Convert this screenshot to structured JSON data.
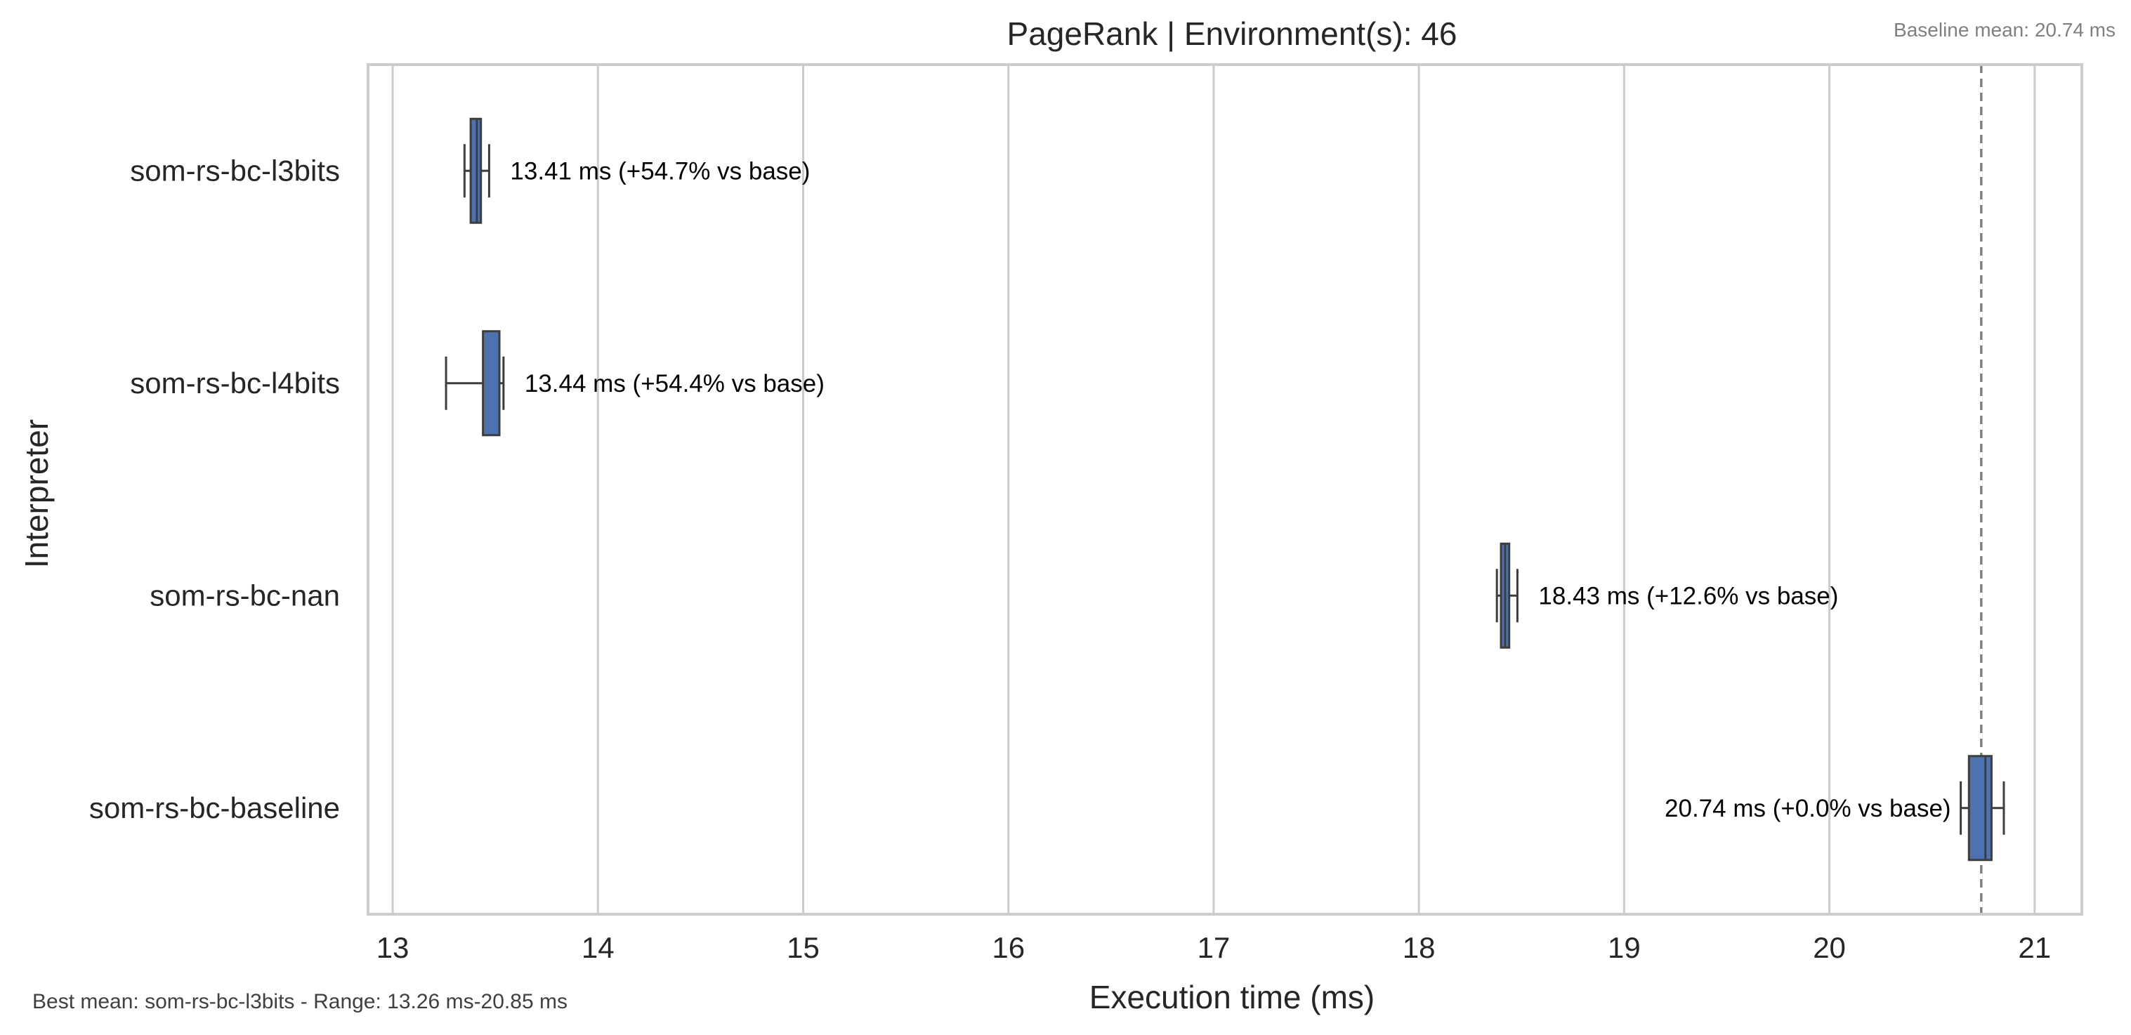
{
  "chart_data": {
    "type": "boxplot",
    "orientation": "horizontal",
    "title": "PageRank | Environment(s): 46",
    "xlabel": "Execution time (ms)",
    "ylabel": "Interpreter",
    "xlim": [
      12.88,
      21.23
    ],
    "xticks": [
      13,
      14,
      15,
      16,
      17,
      18,
      19,
      20,
      21
    ],
    "xtick_labels": [
      "13",
      "14",
      "15",
      "16",
      "17",
      "18",
      "19",
      "20",
      "21"
    ],
    "grid": "vertical",
    "box_color": "#4c72b0",
    "edge_color": "#3d3d3d",
    "baseline_line_color": "#808080",
    "baseline_mean": 20.74,
    "baseline_note": "Baseline mean: 20.74 ms",
    "footer_note": "Best mean: som-rs-bc-l3bits - Range: 13.26 ms-20.85 ms",
    "series": [
      {
        "name": "som-rs-bc-l3bits",
        "whisker_low": 13.35,
        "q1": 13.38,
        "median": 13.41,
        "q3": 13.43,
        "whisker_high": 13.47,
        "label": "13.41 ms  (+54.7% vs base)",
        "label_side": "right"
      },
      {
        "name": "som-rs-bc-l4bits",
        "whisker_low": 13.26,
        "q1": 13.44,
        "median": 13.52,
        "q3": 13.52,
        "whisker_high": 13.54,
        "label": "13.44 ms  (+54.4% vs base)",
        "label_side": "right"
      },
      {
        "name": "som-rs-bc-nan",
        "whisker_low": 18.38,
        "q1": 18.4,
        "median": 18.42,
        "q3": 18.44,
        "whisker_high": 18.48,
        "label": "18.43 ms  (+12.6% vs base)",
        "label_side": "right"
      },
      {
        "name": "som-rs-bc-baseline",
        "whisker_low": 20.64,
        "q1": 20.68,
        "median": 20.76,
        "q3": 20.79,
        "whisker_high": 20.85,
        "label": "20.74 ms  (+0.0% vs base)",
        "label_side": "left"
      }
    ]
  }
}
